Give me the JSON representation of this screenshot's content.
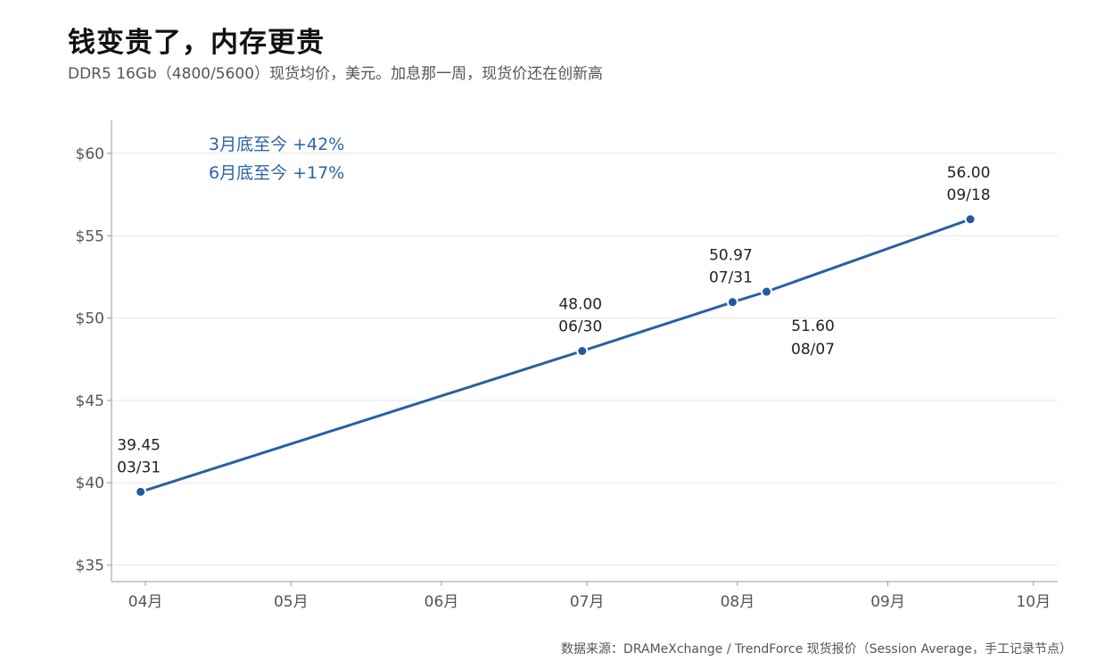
{
  "title": "钱变贵了，内存更贵",
  "subtitle": "DDR5 16Gb（4800/5600）现货均价，美元。加息那一周，现货价还在创新高",
  "source": "数据来源：DRAMeXchange / TrendForce 现货报价（Session Average，手工记录节点）",
  "colors": {
    "line": "#2760a3",
    "point": "#1f5aa0",
    "annotation": "#2b64a8",
    "grid": "#e6e6e6"
  },
  "chart_data": {
    "type": "line",
    "title": "钱变贵了，内存更贵",
    "subtitle": "DDR5 16Gb（4800/5600）现货均价，美元。加息那一周，现货价还在创新高",
    "xlabel": "",
    "ylabel": "",
    "ylim": [
      34,
      62
    ],
    "xlim": [
      "2025-03-25",
      "2025-10-06"
    ],
    "grid": "horizontal",
    "y_ticks": [
      35,
      40,
      45,
      50,
      55,
      60
    ],
    "y_tick_labels": [
      "$35",
      "$40",
      "$45",
      "$50",
      "$55",
      "$60"
    ],
    "x_ticks": [
      "2025-04-01",
      "2025-05-01",
      "2025-06-01",
      "2025-07-01",
      "2025-08-01",
      "2025-09-01",
      "2025-10-01"
    ],
    "x_tick_labels": [
      "04月",
      "05月",
      "06月",
      "07月",
      "08月",
      "09月",
      "10月"
    ],
    "points": [
      {
        "x": "2025-03-31",
        "y": 39.45,
        "value_label": "39.45",
        "date_label": "03/31",
        "label_pos": "above"
      },
      {
        "x": "2025-06-30",
        "y": 48.0,
        "value_label": "48.00",
        "date_label": "06/30",
        "label_pos": "above"
      },
      {
        "x": "2025-07-31",
        "y": 50.97,
        "value_label": "50.97",
        "date_label": "07/31",
        "label_pos": "above"
      },
      {
        "x": "2025-08-07",
        "y": 51.6,
        "value_label": "51.60",
        "date_label": "08/07",
        "label_pos": "below-right"
      },
      {
        "x": "2025-09-18",
        "y": 56.0,
        "value_label": "56.00",
        "date_label": "09/18",
        "label_pos": "above"
      }
    ],
    "annotations": [
      "3月底至今 +42%",
      "6月底至今 +17%"
    ]
  }
}
